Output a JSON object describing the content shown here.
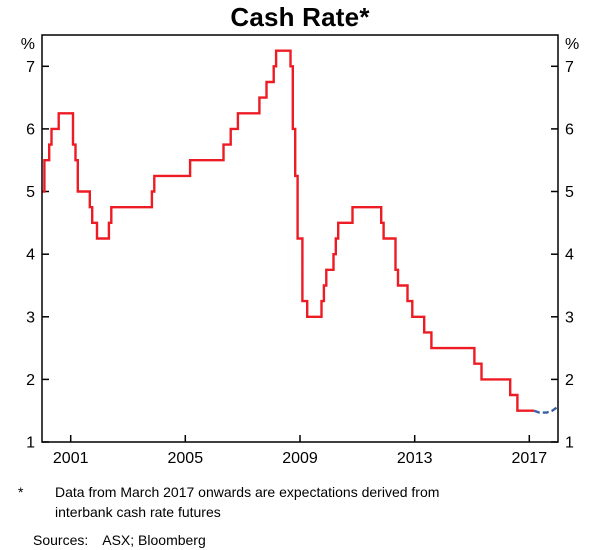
{
  "title": "Cash Rate*",
  "footnote": {
    "marker": "*",
    "text": "Data from March 2017 onwards are expectations derived from interbank cash rate futures"
  },
  "sources": {
    "label": "Sources:",
    "value": "ASX; Bloomberg"
  },
  "colors": {
    "actual_line": "#ed1c24",
    "expectations_line": "#3a5fa5",
    "axis": "#000000"
  },
  "chart_data": {
    "type": "line",
    "title": "Cash Rate*",
    "xlabel": "",
    "ylabel": "%",
    "grid": false,
    "legend": "none",
    "xlim": [
      2000,
      2018
    ],
    "ylim": [
      1,
      7.5
    ],
    "x_ticks": [
      2001,
      2005,
      2009,
      2013,
      2017
    ],
    "y_ticks": [
      1,
      2,
      3,
      4,
      5,
      6,
      7
    ],
    "series": [
      {
        "id": "actual",
        "name": "Cash rate (actual)",
        "style": "step",
        "color": "#ed1c24",
        "points": [
          [
            2000.0,
            5.0
          ],
          [
            2000.083,
            5.5
          ],
          [
            2000.25,
            5.75
          ],
          [
            2000.333,
            6.0
          ],
          [
            2000.583,
            6.25
          ],
          [
            2001.083,
            5.75
          ],
          [
            2001.167,
            5.5
          ],
          [
            2001.25,
            5.0
          ],
          [
            2001.667,
            4.75
          ],
          [
            2001.75,
            4.5
          ],
          [
            2001.917,
            4.25
          ],
          [
            2002.333,
            4.5
          ],
          [
            2002.417,
            4.75
          ],
          [
            2003.833,
            5.0
          ],
          [
            2003.917,
            5.25
          ],
          [
            2005.167,
            5.5
          ],
          [
            2006.333,
            5.75
          ],
          [
            2006.583,
            6.0
          ],
          [
            2006.833,
            6.25
          ],
          [
            2007.583,
            6.5
          ],
          [
            2007.833,
            6.75
          ],
          [
            2008.083,
            7.0
          ],
          [
            2008.167,
            7.25
          ],
          [
            2008.667,
            7.0
          ],
          [
            2008.75,
            6.0
          ],
          [
            2008.833,
            5.25
          ],
          [
            2008.917,
            4.25
          ],
          [
            2009.083,
            3.25
          ],
          [
            2009.25,
            3.0
          ],
          [
            2009.75,
            3.25
          ],
          [
            2009.833,
            3.5
          ],
          [
            2009.917,
            3.75
          ],
          [
            2010.167,
            4.0
          ],
          [
            2010.25,
            4.25
          ],
          [
            2010.333,
            4.5
          ],
          [
            2010.833,
            4.75
          ],
          [
            2011.833,
            4.5
          ],
          [
            2011.917,
            4.25
          ],
          [
            2012.333,
            3.75
          ],
          [
            2012.417,
            3.5
          ],
          [
            2012.75,
            3.25
          ],
          [
            2012.917,
            3.0
          ],
          [
            2013.333,
            2.75
          ],
          [
            2013.583,
            2.5
          ],
          [
            2015.083,
            2.25
          ],
          [
            2015.333,
            2.0
          ],
          [
            2016.333,
            1.75
          ],
          [
            2016.583,
            1.5
          ],
          [
            2017.167,
            1.5
          ]
        ]
      },
      {
        "id": "expectations",
        "name": "Expectations derived from interbank cash rate futures",
        "style": "dashed",
        "color": "#3a5fa5",
        "points": [
          [
            2017.167,
            1.5
          ],
          [
            2017.35,
            1.47
          ],
          [
            2017.6,
            1.47
          ],
          [
            2017.8,
            1.5
          ],
          [
            2017.95,
            1.55
          ]
        ]
      }
    ]
  }
}
